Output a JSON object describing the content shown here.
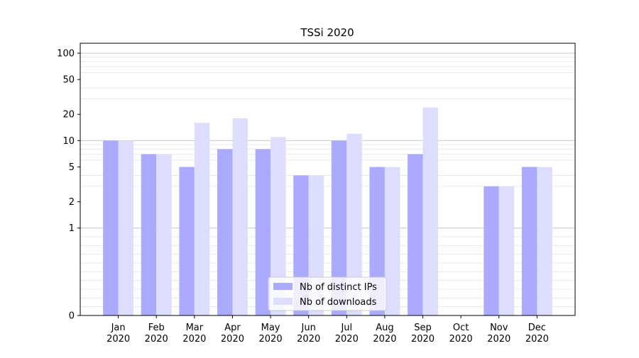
{
  "chart_data": {
    "type": "bar",
    "title": "TSSi 2020",
    "xlabel": "",
    "ylabel": "",
    "y_scale": "symlog",
    "y_ticks": [
      0,
      1,
      2,
      5,
      10,
      20,
      50,
      100
    ],
    "ylim": [
      0,
      130
    ],
    "grid": true,
    "legend_position": "bottom-center",
    "categories": [
      [
        "Jan",
        "2020"
      ],
      [
        "Feb",
        "2020"
      ],
      [
        "Mar",
        "2020"
      ],
      [
        "Apr",
        "2020"
      ],
      [
        "May",
        "2020"
      ],
      [
        "Jun",
        "2020"
      ],
      [
        "Jul",
        "2020"
      ],
      [
        "Aug",
        "2020"
      ],
      [
        "Sep",
        "2020"
      ],
      [
        "Oct",
        "2020"
      ],
      [
        "Nov",
        "2020"
      ],
      [
        "Dec",
        "2020"
      ]
    ],
    "series": [
      {
        "name": "Nb of distinct IPs",
        "color": "#aaaaff",
        "values": [
          10,
          7,
          5,
          8,
          8,
          4,
          10,
          5,
          7,
          0,
          3,
          5
        ]
      },
      {
        "name": "Nb of downloads",
        "color": "#ddddff",
        "values": [
          10,
          7,
          16,
          18,
          11,
          4,
          12,
          5,
          24,
          0,
          3,
          5
        ]
      }
    ]
  }
}
